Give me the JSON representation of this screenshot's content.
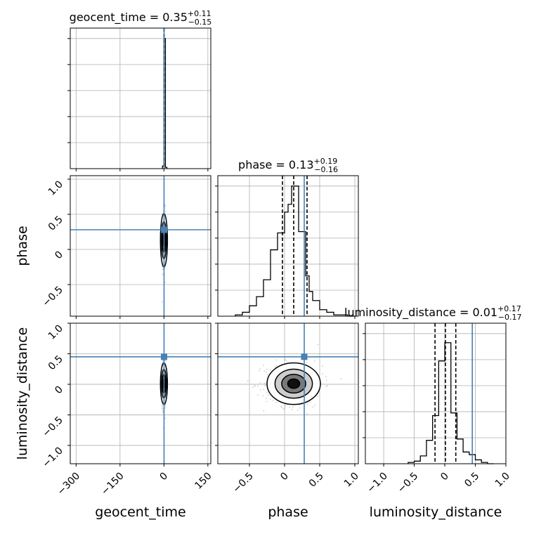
{
  "chart_data": {
    "type": "corner",
    "truth_color": "#4682b4",
    "hist_color": "#000000",
    "sample_color": "#888888",
    "grid": true,
    "parameters": [
      {
        "name": "geocent_time",
        "label": "geocent_time",
        "range": [
          -320,
          160
        ],
        "ticks": [
          -300,
          -150,
          0,
          150
        ],
        "truth": 0.35,
        "title": {
          "name": "geocent_time",
          "median": "0.35",
          "plus": "+0.11",
          "minus": "−0.15"
        },
        "quantiles": [
          0.2,
          0.35,
          0.46
        ],
        "hist": {
          "edges": [
            -5,
            0,
            5,
            10
          ],
          "counts": [
            0.02,
            1.0,
            0.01
          ]
        }
      },
      {
        "name": "phase",
        "label": "phase",
        "range": [
          -0.95,
          1.05
        ],
        "ticks": [
          -0.5,
          0.0,
          0.5,
          1.0
        ],
        "truth": 0.28,
        "title": {
          "name": "phase",
          "median": "0.13",
          "plus": "+0.19",
          "minus": "−0.16"
        },
        "quantiles": [
          -0.03,
          0.13,
          0.32
        ],
        "hist": {
          "edges": [
            -0.7,
            -0.6,
            -0.5,
            -0.4,
            -0.3,
            -0.2,
            -0.1,
            0.0,
            0.05,
            0.1,
            0.2,
            0.3,
            0.35,
            0.4,
            0.5,
            0.6,
            0.7,
            0.8,
            0.9,
            1.0
          ],
          "counts": [
            0.01,
            0.03,
            0.08,
            0.15,
            0.28,
            0.51,
            0.64,
            0.8,
            0.86,
            1.0,
            0.65,
            0.31,
            0.19,
            0.12,
            0.05,
            0.03,
            0.01,
            0.01,
            0.0
          ]
        }
      },
      {
        "name": "luminosity_distance",
        "label": "luminosity_distance",
        "range": [
          -1.3,
          1.0
        ],
        "ticks": [
          -1.0,
          -0.5,
          0.0,
          0.5,
          1.0
        ],
        "truth": 0.45,
        "title": {
          "name": "luminosity_distance",
          "median": "0.01",
          "plus": "+0.17",
          "minus": "−0.17"
        },
        "quantiles": [
          -0.16,
          0.01,
          0.18
        ],
        "hist": {
          "edges": [
            -0.6,
            -0.5,
            -0.4,
            -0.3,
            -0.2,
            -0.1,
            0.0,
            0.1,
            0.2,
            0.3,
            0.4,
            0.5,
            0.6,
            0.7,
            0.8
          ],
          "counts": [
            0.01,
            0.02,
            0.06,
            0.18,
            0.37,
            0.79,
            0.93,
            0.39,
            0.19,
            0.09,
            0.07,
            0.03,
            0.01,
            0.0
          ]
        }
      }
    ],
    "pairs": [
      {
        "x": "geocent_time",
        "y": "phase",
        "center": [
          0,
          0.13
        ],
        "spread": [
          3,
          0.19
        ]
      },
      {
        "x": "geocent_time",
        "y": "luminosity_distance",
        "center": [
          0,
          0.01
        ],
        "spread": [
          3,
          0.17
        ]
      },
      {
        "x": "phase",
        "y": "luminosity_distance",
        "center": [
          0.13,
          0.01
        ],
        "spread": [
          0.19,
          0.17
        ]
      }
    ]
  }
}
